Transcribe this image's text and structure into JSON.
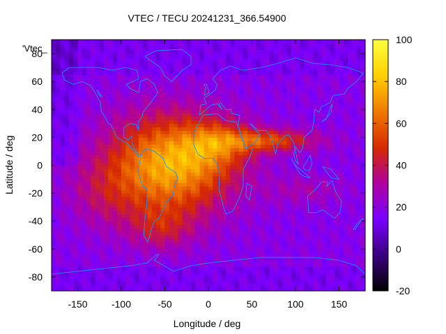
{
  "chart_data": {
    "type": "heatmap",
    "title": "VTEC / TECU 20241231_366.54900",
    "xlabel": "Longitude / deg",
    "ylabel": "Latitude / deg",
    "legend_label": "'Vtec_",
    "xlim": [
      -180,
      180
    ],
    "ylim": [
      -90,
      90
    ],
    "x_ticks": [
      -150,
      -100,
      -50,
      0,
      50,
      100,
      150
    ],
    "y_ticks": [
      -80,
      -60,
      -40,
      -20,
      0,
      20,
      40,
      60,
      80
    ],
    "colorbar": {
      "range": [
        -20,
        100
      ],
      "ticks": [
        -20,
        0,
        20,
        40,
        60,
        80,
        100
      ],
      "palette": [
        "#000000",
        "#3b0080",
        "#7a00ff",
        "#b000a0",
        "#d62a00",
        "#f07a00",
        "#ffd000",
        "#ffff40"
      ]
    },
    "grid_resolution_deg": [
      5,
      2.5
    ],
    "field_features": {
      "background_level": 20,
      "peak_level": 90,
      "peak_region": "South America and equatorial Atlantic / Africa",
      "plume_region": "Arabian Sea to Indian Ocean near 20 N",
      "secondary_band": "Southern mid latitudes near 60 W"
    },
    "colors": {
      "coastline": "#1e90ff",
      "axis": "#000000"
    }
  }
}
